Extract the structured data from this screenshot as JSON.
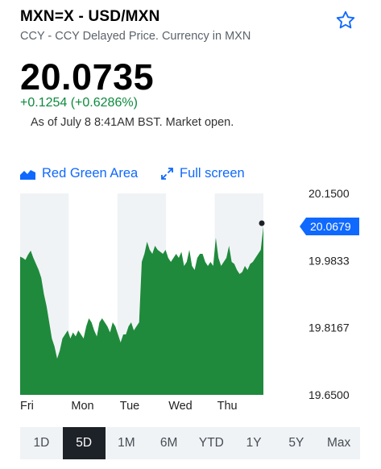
{
  "header": {
    "title": "MXN=X - USD/MXN",
    "subtitle": "CCY - CCY Delayed Price. Currency in MXN"
  },
  "quote": {
    "price": "20.0735",
    "change": "+0.1254 (+0.6286%)",
    "as_of": "As of July 8 8:41AM BST. Market open."
  },
  "toolbar": {
    "area_label": "Red Green Area",
    "fullscreen_label": "Full screen"
  },
  "colors": {
    "accent": "#0f69ff",
    "positive": "#0c8a3c",
    "area_fill": "#1f8a3c",
    "band": "#f0f3f5"
  },
  "chart_data": {
    "type": "area",
    "x_labels": [
      "Fri",
      "Mon",
      "Tue",
      "Wed",
      "Thu"
    ],
    "y_ticks": [
      "20.1500",
      "19.9833",
      "19.8167",
      "19.6500"
    ],
    "ylim": [
      19.65,
      20.15
    ],
    "current_label": "20.0679",
    "current_value": 20.0679,
    "series": [
      {
        "values": [
          19.993,
          19.99,
          19.985,
          19.998,
          20.008,
          19.99,
          19.975,
          19.96,
          19.94,
          19.9,
          19.87,
          19.83,
          19.79,
          19.77,
          19.74,
          19.76,
          19.79,
          19.8,
          19.81,
          19.79,
          19.805,
          19.795,
          19.81,
          19.8,
          19.79,
          19.82,
          19.84,
          19.83,
          19.81,
          19.795,
          19.83,
          19.84,
          19.83,
          19.82,
          19.805,
          19.83,
          19.82,
          19.8,
          19.78,
          19.8,
          19.8,
          19.82,
          19.83,
          19.81,
          19.82,
          19.83,
          19.98,
          20.0,
          20.03,
          20.01,
          20.0,
          20.02,
          20.01,
          20.005,
          20.0,
          20.01,
          19.99,
          19.98,
          19.99,
          20.0,
          19.99,
          20.005,
          19.97,
          19.98,
          20.01,
          19.97,
          19.96,
          19.99,
          20.0,
          20.0,
          19.98,
          19.97,
          19.98,
          19.97,
          20.04,
          19.99,
          19.97,
          19.98,
          19.99,
          20.02,
          19.98,
          19.975,
          19.96,
          19.95,
          19.955,
          19.97,
          19.96,
          19.975,
          19.98,
          19.99,
          20.0,
          20.01,
          20.068
        ]
      }
    ]
  },
  "ranges": [
    {
      "label": "1D",
      "active": false
    },
    {
      "label": "5D",
      "active": true
    },
    {
      "label": "1M",
      "active": false
    },
    {
      "label": "6M",
      "active": false
    },
    {
      "label": "YTD",
      "active": false
    },
    {
      "label": "1Y",
      "active": false
    },
    {
      "label": "5Y",
      "active": false
    },
    {
      "label": "Max",
      "active": false
    }
  ]
}
